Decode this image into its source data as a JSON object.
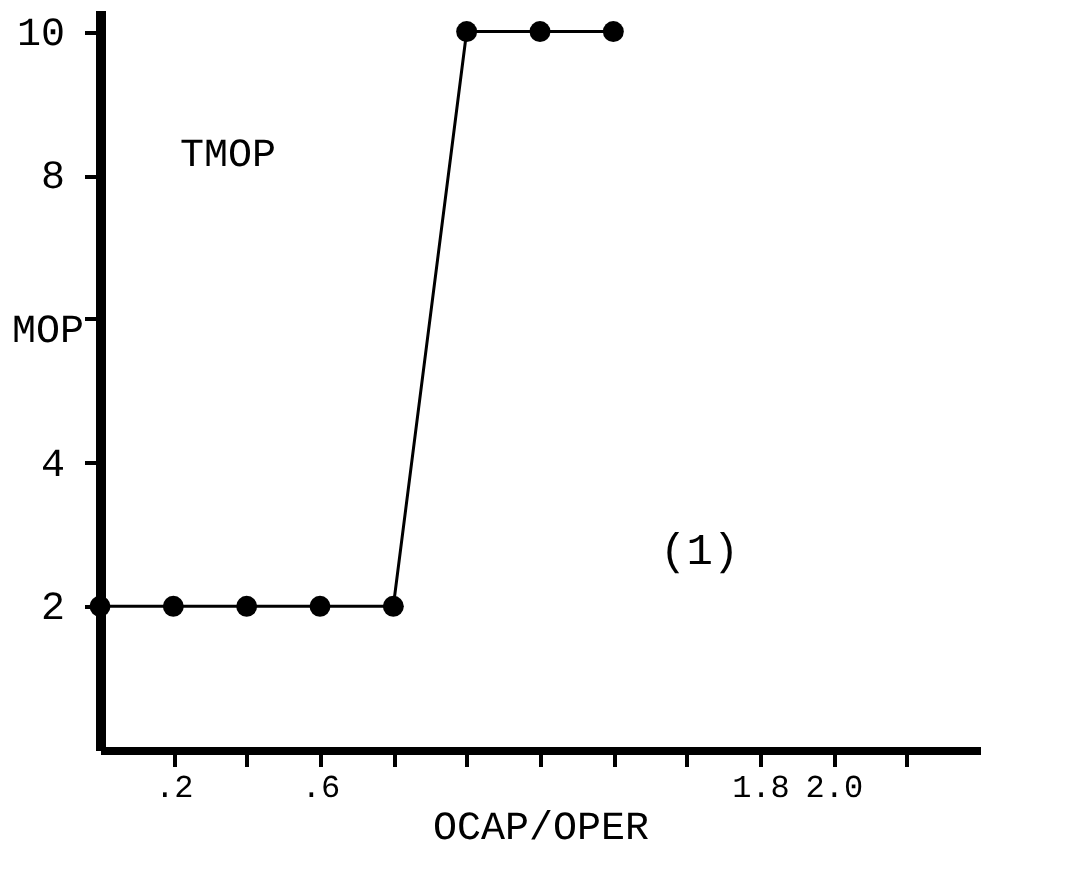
{
  "chart_data": {
    "type": "line",
    "xlabel": "OCAP/OPER",
    "ylabel": "MOP",
    "annotations": [
      "(1)"
    ],
    "x": [
      0,
      0.2,
      0.4,
      0.6,
      0.8,
      1.0,
      1.2,
      1.4
    ],
    "series": [
      {
        "name": "TMOP",
        "color": "#000000",
        "values": [
          2,
          2,
          2,
          2,
          2,
          10,
          10,
          10
        ]
      }
    ],
    "marker": "circle",
    "line_style": "solid",
    "grid": false,
    "xlim": [
      0,
      2.4
    ],
    "xticks": [
      {
        "value": 0.2,
        "label": ".2"
      },
      {
        "value": 0.4,
        "label": null
      },
      {
        "value": 0.6,
        "label": ".6"
      },
      {
        "value": 0.8,
        "label": null
      },
      {
        "value": 1.0,
        "label": null
      },
      {
        "value": 1.2,
        "label": null
      },
      {
        "value": 1.4,
        "label": null
      },
      {
        "value": 1.6,
        "label": null
      },
      {
        "value": 1.8,
        "label": "1.8"
      },
      {
        "value": 2.0,
        "label": "2.0"
      },
      {
        "value": 2.2,
        "label": null
      }
    ],
    "ylim": [
      0,
      10.3
    ],
    "yticks": [
      2,
      4,
      {
        "value": 6,
        "label": null
      },
      8,
      10
    ]
  }
}
